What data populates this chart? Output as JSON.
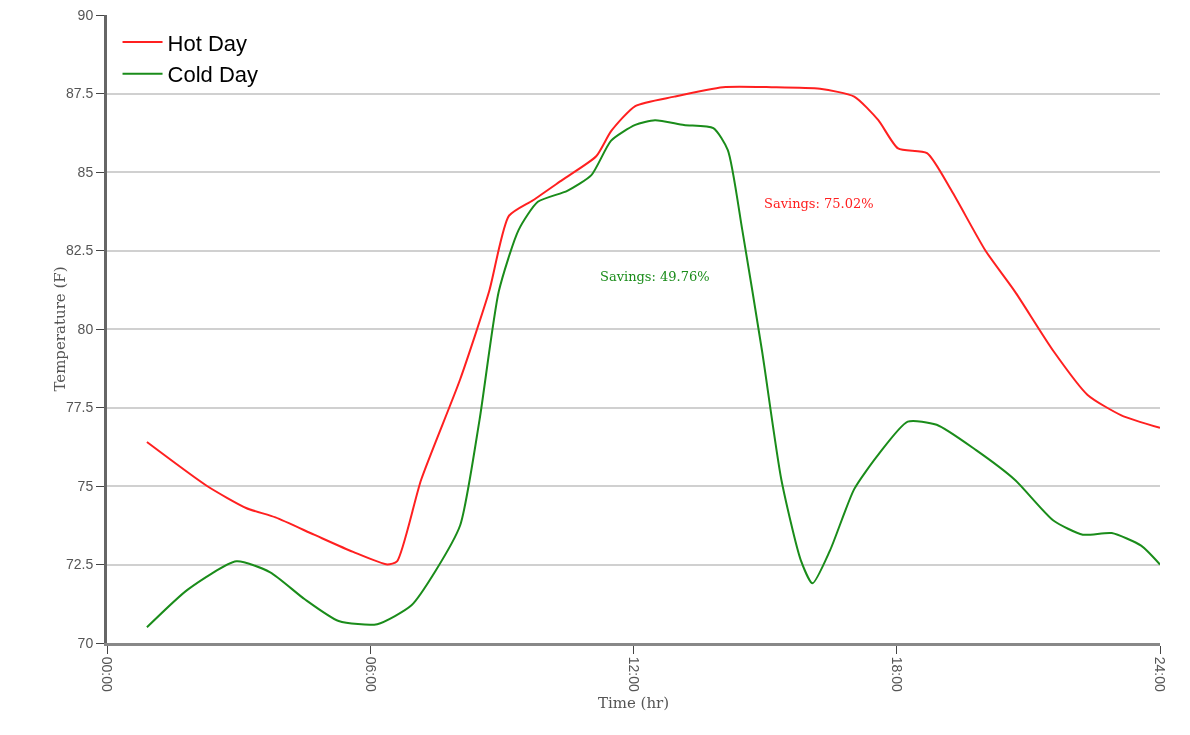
{
  "chart_data": {
    "type": "line",
    "xlabel": "Time (hr)",
    "ylabel": "Temperature (F)",
    "xlim": [
      0,
      24
    ],
    "xticks": [
      {
        "value": 0,
        "label": "00:00"
      },
      {
        "value": 6,
        "label": "06:00"
      },
      {
        "value": 12,
        "label": "12:00"
      },
      {
        "value": 18,
        "label": "18:00"
      },
      {
        "value": 24,
        "label": "24:00"
      }
    ],
    "ylim": [
      70,
      90
    ],
    "yticks": [
      70,
      72.5,
      75,
      77.5,
      80,
      82.5,
      85,
      87.5,
      90
    ],
    "grid": "y",
    "legend": "top left",
    "marker": "none",
    "line_style": "solid",
    "series": [
      {
        "name": "Hot Day",
        "color": "#ff2020",
        "x": [
          0.91,
          2.28,
          3.17,
          3.84,
          4.72,
          5.61,
          6.39,
          6.61,
          7.16,
          8.05,
          8.71,
          9.16,
          9.71,
          10.38,
          11.15,
          11.49,
          12.04,
          12.93,
          14.04,
          15.15,
          16.25,
          17.03,
          17.58,
          18.03,
          18.69,
          19.25,
          20.02,
          20.69,
          21.57,
          22.35,
          23.12,
          24
        ],
        "values": [
          76.4,
          75.0,
          74.3,
          74.0,
          73.45,
          72.9,
          72.5,
          72.6,
          75.2,
          78.4,
          81.2,
          83.6,
          84.1,
          84.75,
          85.5,
          86.3,
          87.1,
          87.4,
          87.7,
          87.7,
          87.65,
          87.4,
          86.65,
          85.75,
          85.6,
          84.4,
          82.5,
          81.2,
          79.3,
          77.9,
          77.25,
          76.85
        ]
      },
      {
        "name": "Cold Day",
        "color": "#1a8c1a",
        "x": [
          0.91,
          1.84,
          2.95,
          3.72,
          4.5,
          5.28,
          6.16,
          6.94,
          7.49,
          8.05,
          8.49,
          8.93,
          9.38,
          9.82,
          10.49,
          11.04,
          11.49,
          12.04,
          12.49,
          13.15,
          13.82,
          14.15,
          14.48,
          14.93,
          15.37,
          15.81,
          16.08,
          16.48,
          17.03,
          17.58,
          18.25,
          18.91,
          19.8,
          20.69,
          21.57,
          22.24,
          22.9,
          23.57,
          24
        ],
        "values": [
          70.5,
          71.7,
          72.6,
          72.25,
          71.4,
          70.7,
          70.6,
          71.2,
          72.3,
          73.75,
          77.1,
          81.2,
          83.15,
          84.05,
          84.4,
          84.9,
          86.0,
          86.5,
          86.65,
          86.5,
          86.4,
          85.7,
          83.15,
          79.3,
          75.2,
          72.65,
          71.9,
          72.95,
          74.9,
          76.0,
          77.05,
          76.95,
          76.15,
          75.2,
          73.9,
          73.45,
          73.5,
          73.1,
          72.5
        ]
      }
    ],
    "annotations": [
      "Savings: 75.02%",
      "Savings: 49.76%"
    ]
  }
}
